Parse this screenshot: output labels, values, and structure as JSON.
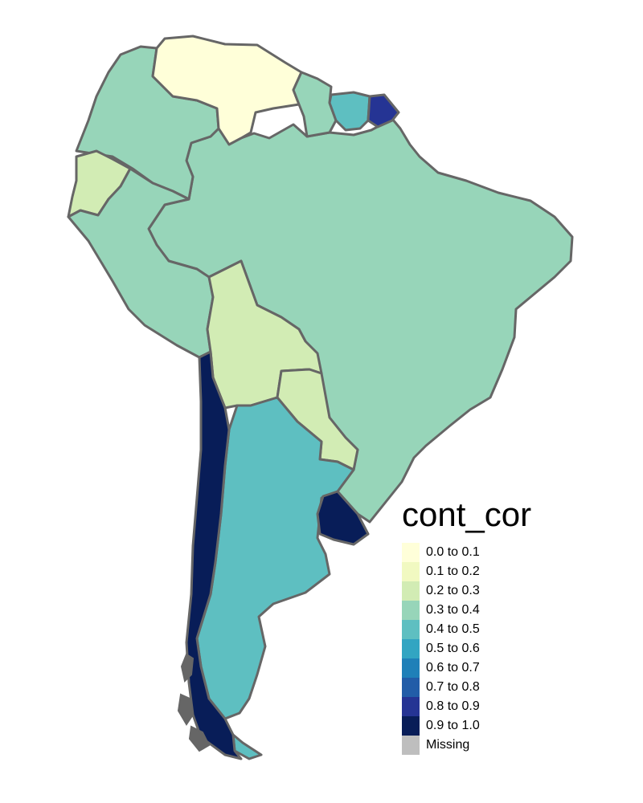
{
  "legend": {
    "title": "cont_cor",
    "items": [
      {
        "label": "0.0 to 0.1",
        "color": "#ffffd9"
      },
      {
        "label": "0.1 to 0.2",
        "color": "#f1f9c1"
      },
      {
        "label": "0.2 to 0.3",
        "color": "#d2ecb4"
      },
      {
        "label": "0.3 to 0.4",
        "color": "#97d5b9"
      },
      {
        "label": "0.4 to 0.5",
        "color": "#5ebfc1"
      },
      {
        "label": "0.5 to 0.6",
        "color": "#32a5c2"
      },
      {
        "label": "0.6 to 0.7",
        "color": "#1f80b8"
      },
      {
        "label": "0.7 to 0.8",
        "color": "#225da8"
      },
      {
        "label": "0.8 to 0.9",
        "color": "#253494"
      },
      {
        "label": "0.9 to 1.0",
        "color": "#081d58"
      },
      {
        "label": "Missing",
        "color": "#bebebe"
      }
    ]
  },
  "countries": [
    {
      "name": "Colombia",
      "range": "0.3 to 0.4"
    },
    {
      "name": "Venezuela",
      "range": "0.0 to 0.1"
    },
    {
      "name": "Guyana",
      "range": "0.3 to 0.4"
    },
    {
      "name": "Suriname",
      "range": "0.4 to 0.5"
    },
    {
      "name": "French Guiana",
      "range": "0.8 to 0.9"
    },
    {
      "name": "Ecuador",
      "range": "0.2 to 0.3"
    },
    {
      "name": "Peru",
      "range": "0.3 to 0.4"
    },
    {
      "name": "Brazil",
      "range": "0.3 to 0.4"
    },
    {
      "name": "Bolivia",
      "range": "0.2 to 0.3"
    },
    {
      "name": "Paraguay",
      "range": "0.2 to 0.3"
    },
    {
      "name": "Chile",
      "range": "0.9 to 1.0"
    },
    {
      "name": "Argentina",
      "range": "0.4 to 0.5"
    },
    {
      "name": "Uruguay",
      "range": "0.9 to 1.0"
    }
  ]
}
